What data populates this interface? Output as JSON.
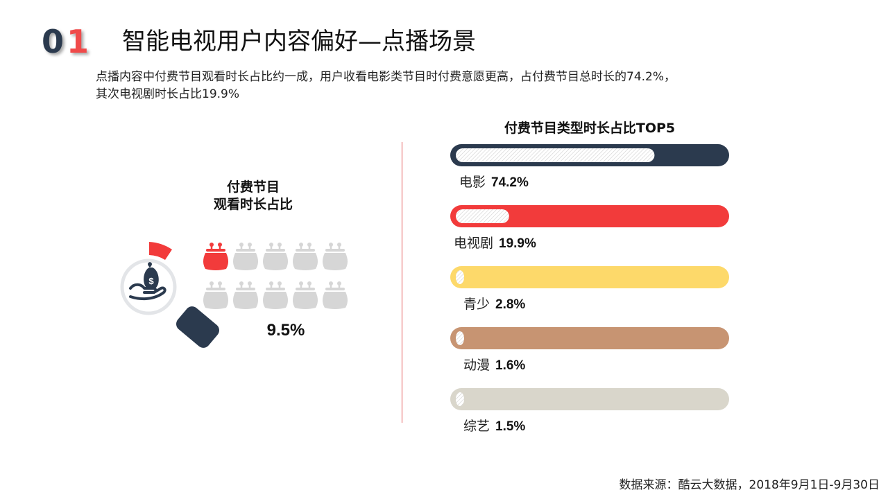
{
  "header": {
    "section_number": [
      "0",
      "1"
    ],
    "title": "智能电视用户内容偏好—点播场景",
    "description_line1": "点播内容中付费节目观看时长占比约一成，用户收看电影类节目时付费意愿更高，占付费节目总时长的74.2%，",
    "description_line2": "其次电视剧时长占比19.9%"
  },
  "left_panel": {
    "label_line1": "付费节目",
    "label_line2": "观看时长占比",
    "percent_label": "9.5%",
    "icons": [
      "money-bag-hand-icon",
      "purse-icon"
    ]
  },
  "right_panel": {
    "title": "付费节目类型时长占比TOP5"
  },
  "colors": {
    "navy": "#2b3a4e",
    "red": "#f23b3b",
    "yellow": "#fdd96a",
    "tan": "#c79472",
    "beige": "#d9d6cb",
    "gray": "#d6d6d6"
  },
  "chart_data": [
    {
      "type": "bar",
      "title": "付费节目类型时长占比TOP5",
      "categories": [
        "电影",
        "电视剧",
        "青少",
        "动漫",
        "综艺"
      ],
      "values": [
        74.2,
        19.9,
        2.8,
        1.6,
        1.5
      ],
      "value_labels": [
        "74.2%",
        "19.9%",
        "2.8%",
        "1.6%",
        "1.5%"
      ],
      "colors": [
        "#2b3a4e",
        "#f23b3b",
        "#fdd96a",
        "#c79472",
        "#d9d6cb"
      ],
      "ylim": [
        0,
        100
      ]
    },
    {
      "type": "pictograph",
      "title": "付费节目观看时长占比",
      "value": 9.5,
      "value_label": "9.5%",
      "icon_count": 10,
      "highlighted_icons": 1
    }
  ],
  "footer": {
    "source": "数据来源：酷云大数据，2018年9月1日-9月30日"
  }
}
